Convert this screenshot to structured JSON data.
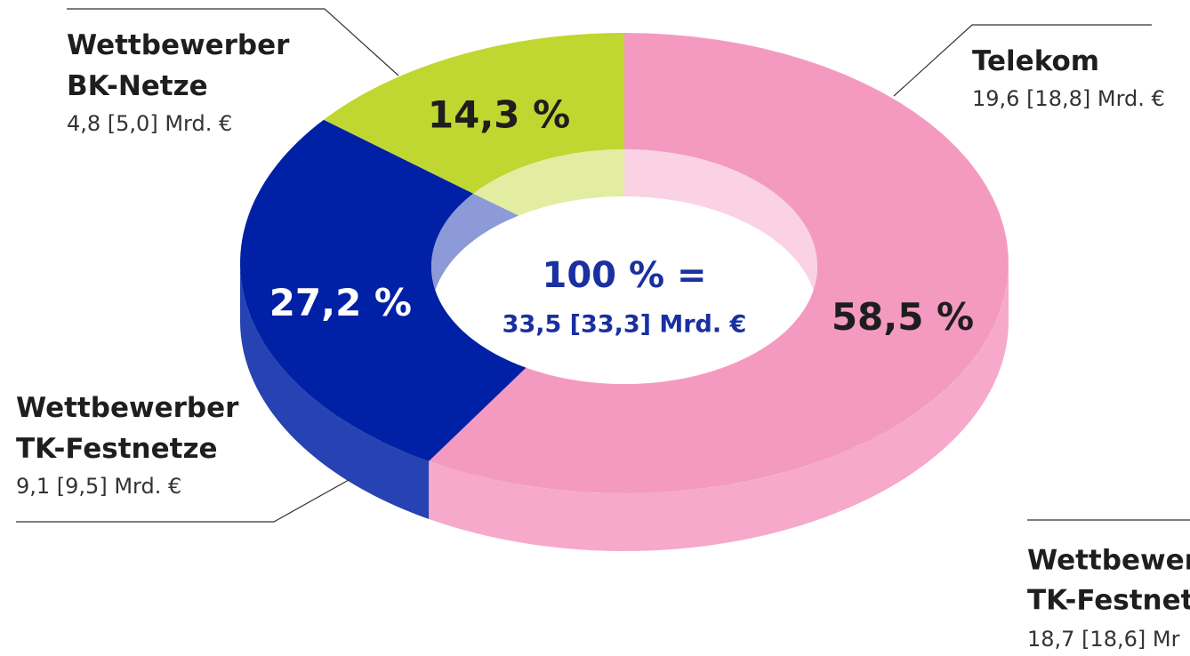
{
  "chart_data": {
    "type": "donut",
    "categories": [
      "Telekom",
      "Wettbewerber TK-Festnetze",
      "Wettbewerber BK-Netze"
    ],
    "details": [
      "19,6 [18,8] Mrd. €",
      "9,1 [9,5] Mrd. €",
      "4,8 [5,0] Mrd. €"
    ],
    "values": [
      58.5,
      27.2,
      14.3
    ],
    "value_labels": [
      "58,5 %",
      "27,2 %",
      "14,3 %"
    ],
    "colors": [
      "#f49ac1",
      "#0021a5",
      "#bfd730"
    ],
    "center_label": [
      "100 % =",
      "33,5 [33,3] Mrd. €"
    ],
    "annotations": [
      "Wettbewer",
      "TK-Festnet",
      "18,7 [18,6] Mr"
    ]
  }
}
